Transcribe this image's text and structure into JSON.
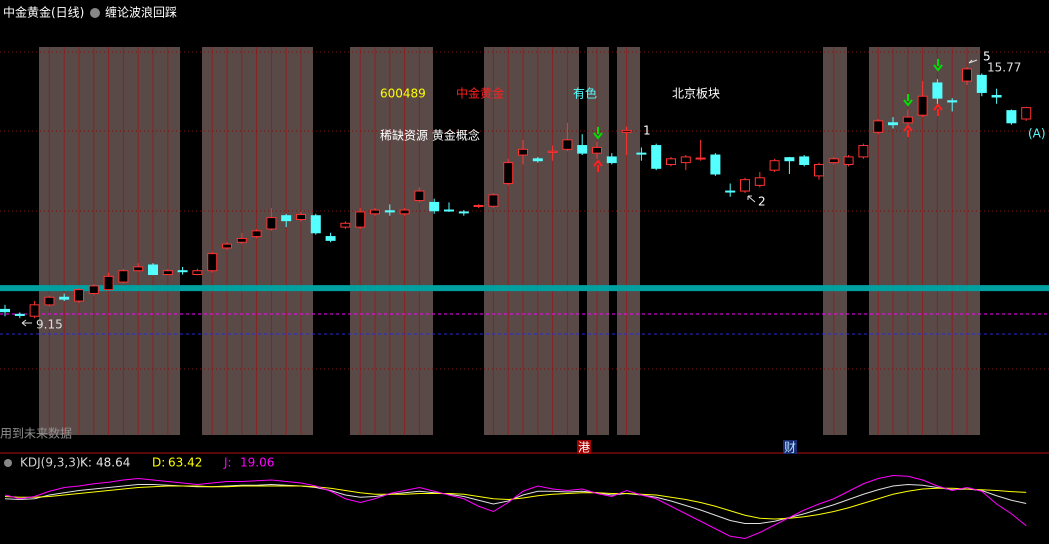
{
  "header": {
    "title": "中金黄金(日线)",
    "indicator": "缠论波浪回踩"
  },
  "chart_data": [
    {
      "type": "candlestick",
      "open": [
        9.38,
        9.25,
        9.2,
        9.5,
        9.7,
        9.6,
        9.8,
        9.9,
        10.1,
        10.4,
        10.55,
        10.3,
        10.4,
        10.3,
        10.4,
        11.0,
        11.15,
        11.3,
        11.5,
        11.85,
        11.75,
        11.85,
        11.3,
        11.55,
        11.55,
        11.9,
        11.98,
        11.9,
        12.25,
        12.2,
        12.0,
        11.95,
        12.1,
        12.1,
        12.7,
        13.45,
        13.35,
        13.52,
        13.6,
        13.7,
        13.5,
        13.4,
        14.05,
        13.5,
        13.7,
        13.2,
        13.25,
        13.35,
        13.45,
        12.5,
        12.5,
        12.65,
        13.05,
        13.38,
        13.4,
        12.9,
        13.25,
        13.2,
        13.4,
        14.05,
        14.3,
        14.3,
        14.5,
        15.35,
        14.88,
        15.4,
        15.55,
        15.02,
        14.62,
        14.4
      ],
      "high": [
        9.5,
        9.3,
        9.6,
        9.75,
        9.8,
        9.95,
        10.05,
        10.35,
        10.45,
        10.6,
        10.6,
        10.45,
        10.5,
        10.45,
        10.9,
        11.15,
        11.4,
        11.5,
        12.05,
        11.9,
        11.95,
        11.9,
        11.4,
        11.7,
        12.05,
        12.05,
        12.15,
        12.05,
        12.6,
        12.3,
        12.2,
        12.0,
        12.15,
        12.45,
        13.35,
        13.85,
        13.4,
        13.7,
        14.3,
        14.0,
        13.8,
        13.5,
        14.2,
        13.65,
        13.75,
        13.4,
        13.45,
        13.85,
        13.5,
        12.7,
        12.85,
        13.0,
        13.35,
        13.4,
        13.45,
        13.25,
        13.4,
        13.45,
        13.75,
        14.4,
        14.45,
        14.65,
        15.4,
        15.45,
        14.95,
        15.77,
        15.6,
        15.2,
        14.65,
        14.72
      ],
      "low": [
        9.2,
        9.15,
        9.15,
        9.45,
        9.6,
        9.55,
        9.75,
        9.88,
        10.05,
        10.38,
        10.28,
        10.28,
        10.3,
        10.28,
        10.35,
        10.95,
        11.1,
        11.25,
        11.45,
        11.55,
        11.7,
        11.35,
        11.15,
        11.5,
        11.5,
        11.85,
        11.85,
        11.85,
        12.2,
        11.9,
        11.95,
        11.85,
        12.05,
        12.05,
        12.65,
        13.2,
        13.25,
        13.3,
        13.55,
        13.45,
        13.35,
        13.2,
        13.45,
        13.3,
        13.05,
        13.15,
        13.05,
        13.3,
        12.9,
        12.35,
        12.45,
        12.6,
        13.0,
        12.95,
        13.15,
        12.8,
        13.2,
        13.15,
        13.35,
        14.0,
        14.15,
        14.25,
        14.45,
        14.8,
        14.6,
        15.3,
        15.0,
        14.8,
        14.25,
        14.35
      ],
      "close": [
        9.32,
        9.22,
        9.5,
        9.7,
        9.65,
        9.9,
        10.0,
        10.25,
        10.4,
        10.5,
        10.3,
        10.4,
        10.38,
        10.4,
        10.85,
        11.1,
        11.25,
        11.45,
        11.8,
        11.72,
        11.88,
        11.4,
        11.2,
        11.65,
        11.95,
        12.0,
        11.95,
        12.0,
        12.5,
        11.98,
        11.98,
        11.93,
        12.12,
        12.4,
        13.25,
        13.6,
        13.3,
        13.55,
        13.85,
        13.5,
        13.65,
        13.25,
        14.1,
        13.48,
        13.1,
        13.35,
        13.4,
        13.37,
        12.95,
        12.48,
        12.8,
        12.85,
        13.3,
        13.3,
        13.2,
        13.2,
        13.35,
        13.4,
        13.7,
        14.35,
        14.25,
        14.45,
        15.0,
        14.95,
        14.85,
        15.72,
        15.1,
        14.98,
        14.3,
        14.7
      ],
      "up_color": "#ff3232",
      "down_color": "#54ffff",
      "ylim": [
        5.62,
        17.01
      ],
      "reference_lines": [
        {
          "value": 9.94,
          "color": "#00a0a0"
        },
        {
          "value": 9.26,
          "color": "#ff00ff"
        },
        {
          "value": 8.73,
          "color": "#2a2ad0"
        }
      ],
      "price_labels": [
        15.77,
        9.15
      ],
      "annotations": [
        "600489",
        "中金黄金",
        "有色",
        "北京板块",
        "稀缺资源 黄金概念",
        "1",
        "2",
        "5",
        "(A)",
        "用到未来数据",
        "港",
        "财"
      ]
    },
    {
      "type": "line",
      "title": "KDJ(9,3,3)",
      "ylim": [
        0,
        100
      ],
      "series": [
        {
          "name": "K:",
          "color": "#e0e0e0",
          "last": 48.64,
          "values": [
            55,
            54,
            55,
            60,
            63,
            66,
            68,
            70,
            72,
            74,
            74,
            73,
            72,
            71,
            71,
            72,
            73,
            73,
            74,
            73,
            72,
            70,
            66,
            60,
            57,
            58,
            61,
            63,
            65,
            63,
            61,
            58,
            53,
            48,
            52,
            60,
            65,
            65,
            64,
            65,
            63,
            60,
            62,
            60,
            57,
            52,
            46,
            40,
            33,
            26,
            22,
            22,
            25,
            30,
            35,
            41,
            47,
            54,
            61,
            67,
            72,
            74,
            73,
            70,
            67,
            68,
            66,
            59,
            53,
            48.64
          ]
        },
        {
          "name": "D:",
          "color": "#ffff00",
          "last": 63.42,
          "values": [
            58,
            57,
            57,
            58,
            60,
            62,
            64,
            66,
            68,
            70,
            71,
            72,
            72,
            72,
            71,
            71,
            72,
            72,
            72,
            72,
            72,
            71,
            69,
            66,
            63,
            61,
            61,
            61,
            62,
            62,
            62,
            61,
            58,
            55,
            54,
            56,
            59,
            61,
            62,
            63,
            63,
            62,
            62,
            61,
            60,
            57,
            54,
            50,
            45,
            39,
            33,
            29,
            28,
            29,
            31,
            34,
            38,
            43,
            49,
            55,
            61,
            65,
            68,
            69,
            69,
            68,
            67,
            66,
            64.5,
            63.42
          ]
        },
        {
          "name": "J:",
          "color": "#ff00ff",
          "last": 19.06,
          "values": [
            60,
            55,
            58,
            65,
            70,
            72,
            75,
            77,
            80,
            82,
            80,
            78,
            76,
            74,
            76,
            78,
            78,
            79,
            80,
            78,
            76,
            72,
            65,
            55,
            50,
            55,
            62,
            66,
            70,
            65,
            60,
            55,
            45,
            38,
            50,
            65,
            72,
            68,
            66,
            68,
            62,
            58,
            66,
            60,
            55,
            45,
            35,
            25,
            15,
            5,
            2,
            10,
            20,
            30,
            40,
            48,
            55,
            65,
            75,
            82,
            86,
            85,
            80,
            72,
            66,
            70,
            65,
            48,
            35,
            19.06
          ]
        }
      ]
    }
  ]
}
